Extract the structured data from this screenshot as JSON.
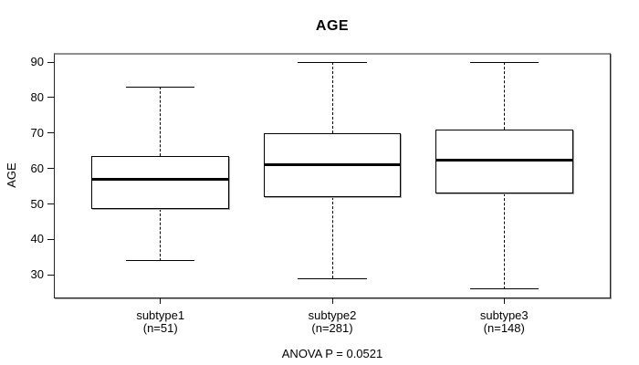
{
  "chart_data": {
    "type": "boxplot",
    "title": "AGE",
    "ylabel": "AGE",
    "xlabel": "",
    "annotation": "ANOVA P = 0.0521",
    "yticks": [
      30,
      40,
      50,
      60,
      70,
      80,
      90
    ],
    "ylim": [
      23.4,
      92.6
    ],
    "xlim": [
      0.38,
      3.62
    ],
    "grid": false,
    "legend": "none",
    "box_width_units": 0.8,
    "cap_width_units": 0.4,
    "groups": [
      {
        "label": "subtype1",
        "n_label": "(n=51)",
        "n": 51,
        "x": 1,
        "whisker_low": 34,
        "q1": 48.5,
        "median": 57,
        "q3": 63.5,
        "whisker_high": 83
      },
      {
        "label": "subtype2",
        "n_label": "(n=281)",
        "n": 281,
        "x": 2,
        "whisker_low": 29,
        "q1": 52,
        "median": 61,
        "q3": 70,
        "whisker_high": 90
      },
      {
        "label": "subtype3",
        "n_label": "(n=148)",
        "n": 148,
        "x": 3,
        "whisker_low": 26,
        "q1": 53,
        "median": 62.5,
        "q3": 71,
        "whisker_high": 90
      }
    ],
    "colors": {
      "line": "#000000",
      "box_fill": "#ffffff",
      "background": "#ffffff"
    }
  }
}
